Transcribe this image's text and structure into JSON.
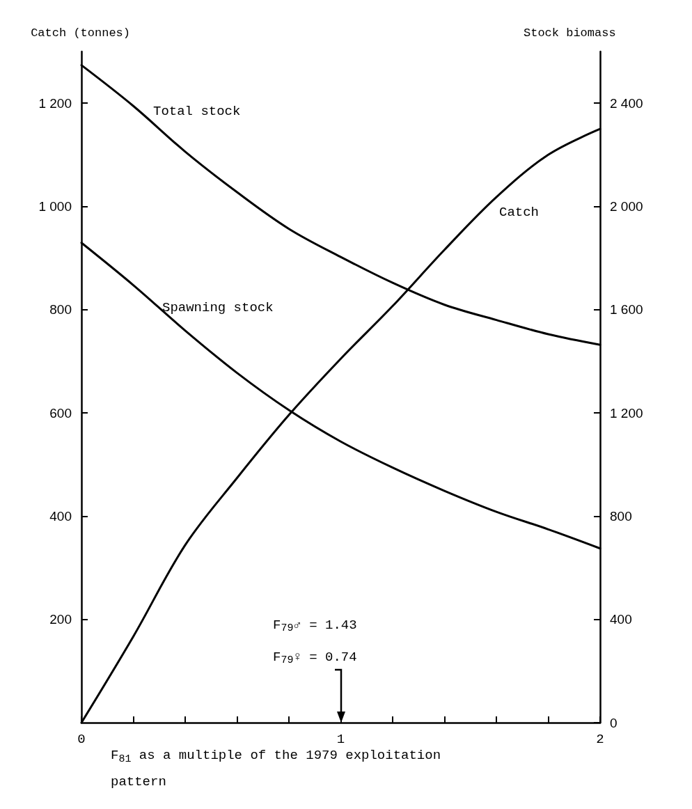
{
  "chart_data": {
    "type": "line",
    "xlabel": "F$_{81}$ as a multiple of the 1979 exploitation pattern",
    "ylabel": "Catch (tonnes)",
    "y2label": "Stock biomass",
    "x": [
      0,
      0.2,
      0.4,
      0.6,
      0.8,
      1,
      1.2,
      1.4,
      1.6,
      1.8,
      2
    ],
    "series": [
      {
        "name": "Total stock",
        "color": "#000000",
        "axis": "y2",
        "values": [
          2547,
          2389,
          2212,
          2055,
          1913,
          1804,
          1704,
          1619,
          1560,
          1505,
          1464
        ]
      },
      {
        "name": "Spawning stock",
        "color": "#000000",
        "axis": "y2",
        "values": [
          1859,
          1695,
          1519,
          1355,
          1211,
          1089,
          988,
          898,
          817,
          749,
          675
        ]
      },
      {
        "name": "Catch",
        "color": "#000000",
        "values": [
          0,
          167,
          344,
          474,
          596,
          705,
          807,
          916,
          1018,
          1100,
          1150
        ]
      }
    ],
    "xlim": [
      0,
      2
    ],
    "xticks": [
      0,
      {
        "value": 0.2,
        "label": null
      },
      {
        "value": 0.4,
        "label": null
      },
      {
        "value": 0.6,
        "label": null
      },
      {
        "value": 0.8,
        "label": null
      },
      1,
      {
        "value": 1.2,
        "label": null
      },
      {
        "value": 1.4,
        "label": null
      },
      {
        "value": 1.6,
        "label": null
      },
      {
        "value": 1.8,
        "label": null
      },
      2
    ],
    "ylim": [
      0,
      1300
    ],
    "yticks": [
      200,
      400,
      600,
      800,
      {
        "value": 1000,
        "label": "1 000"
      },
      {
        "value": 1200,
        "label": "1 200"
      }
    ],
    "y2lim": [
      0,
      2600
    ],
    "y2ticks": [
      0,
      400,
      800,
      {
        "value": 1200,
        "label": "1 200"
      },
      {
        "value": 1600,
        "label": "1 600"
      },
      {
        "value": 2000,
        "label": "2 000"
      },
      {
        "value": 2400,
        "label": "2 400"
      }
    ],
    "annotations": [
      "F$_{79}$♂ = 1.43",
      "F$_{79}$♀ = 0.74"
    ],
    "grid": false,
    "marker": "none",
    "line_style": "solid"
  }
}
